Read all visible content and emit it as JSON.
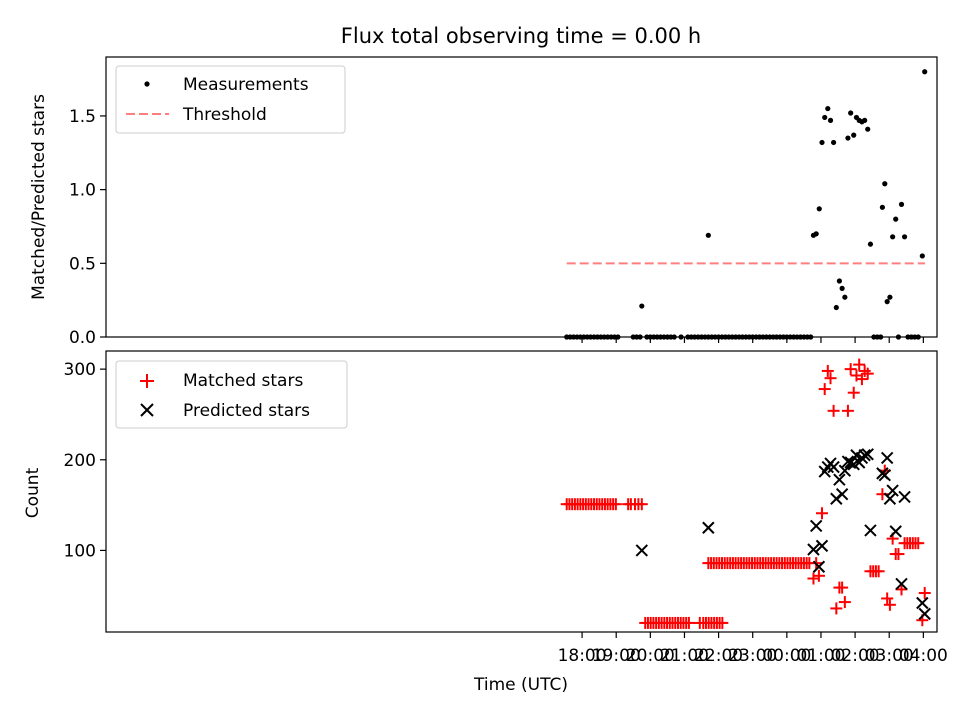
{
  "chart_data": {
    "type": "scatter",
    "title": "Flux total observing time = 0.00 h",
    "xlabel": "Time (UTC)",
    "x_unit": "hours relative to 00:00 UTC",
    "xlim": [
      -19.95,
      4.4
    ],
    "x_ticks": [
      {
        "value": -6,
        "label": "18:00"
      },
      {
        "value": -5,
        "label": "19:00"
      },
      {
        "value": -4,
        "label": "20:00"
      },
      {
        "value": -3,
        "label": "21:00"
      },
      {
        "value": -2,
        "label": "22:00"
      },
      {
        "value": -1,
        "label": "23:00"
      },
      {
        "value": 0,
        "label": "00:00"
      },
      {
        "value": 1,
        "label": "01:00"
      },
      {
        "value": 2,
        "label": "02:00"
      },
      {
        "value": 3,
        "label": "03:00"
      },
      {
        "value": 4,
        "label": "04:00"
      }
    ],
    "top": {
      "ylabel": "Matched/Predicted stars",
      "ylim": [
        0,
        1.9
      ],
      "y_ticks": [
        {
          "value": 0,
          "label": "0.0"
        },
        {
          "value": 0.5,
          "label": "0.5"
        },
        {
          "value": 1.0,
          "label": "1.0"
        },
        {
          "value": 1.5,
          "label": "1.5"
        }
      ],
      "legend": {
        "location": "upper-left",
        "measurements_label": "Measurements",
        "threshold_label": "Threshold"
      },
      "threshold": {
        "name": "Threshold",
        "value": 0.5,
        "x_start": -6.45,
        "x_end": 4.05,
        "color": "#ff7f7f"
      },
      "measurements": {
        "name": "Measurements",
        "color": "#000000",
        "points": [
          [
            -6.45,
            0
          ],
          [
            -6.35,
            0
          ],
          [
            -6.25,
            0
          ],
          [
            -6.15,
            0
          ],
          [
            -6.05,
            0
          ],
          [
            -5.95,
            0
          ],
          [
            -5.85,
            0
          ],
          [
            -5.75,
            0
          ],
          [
            -5.65,
            0
          ],
          [
            -5.55,
            0
          ],
          [
            -5.45,
            0
          ],
          [
            -5.35,
            0
          ],
          [
            -5.25,
            0
          ],
          [
            -5.15,
            0
          ],
          [
            -5.05,
            0
          ],
          [
            -4.95,
            0
          ],
          [
            -4.5,
            0
          ],
          [
            -4.4,
            0
          ],
          [
            -4.3,
            0
          ],
          [
            -4.25,
            0.21
          ],
          [
            -4.1,
            0
          ],
          [
            -4.0,
            0
          ],
          [
            -3.9,
            0
          ],
          [
            -3.8,
            0
          ],
          [
            -3.7,
            0
          ],
          [
            -3.6,
            0
          ],
          [
            -3.5,
            0
          ],
          [
            -3.4,
            0
          ],
          [
            -3.3,
            0
          ],
          [
            -3.1,
            0
          ],
          [
            -2.9,
            0
          ],
          [
            -2.8,
            0
          ],
          [
            -2.7,
            0
          ],
          [
            -2.6,
            0
          ],
          [
            -2.5,
            0
          ],
          [
            -2.4,
            0
          ],
          [
            -2.3,
            0
          ],
          [
            -2.3,
            0.69
          ],
          [
            -2.2,
            0
          ],
          [
            -2.1,
            0
          ],
          [
            -2.0,
            0
          ],
          [
            -1.9,
            0
          ],
          [
            -1.8,
            0
          ],
          [
            -1.7,
            0
          ],
          [
            -1.6,
            0
          ],
          [
            -1.5,
            0
          ],
          [
            -1.4,
            0
          ],
          [
            -1.3,
            0
          ],
          [
            -1.2,
            0
          ],
          [
            -1.1,
            0
          ],
          [
            -1.0,
            0
          ],
          [
            -0.9,
            0
          ],
          [
            -0.8,
            0
          ],
          [
            -0.7,
            0
          ],
          [
            -0.6,
            0
          ],
          [
            -0.5,
            0
          ],
          [
            -0.4,
            0
          ],
          [
            -0.3,
            0
          ],
          [
            -0.2,
            0
          ],
          [
            -0.1,
            0
          ],
          [
            0.0,
            0
          ],
          [
            0.1,
            0
          ],
          [
            0.2,
            0
          ],
          [
            0.3,
            0
          ],
          [
            0.4,
            0
          ],
          [
            0.5,
            0
          ],
          [
            0.6,
            0
          ],
          [
            0.7,
            0
          ],
          [
            0.78,
            0.69
          ],
          [
            0.86,
            0.7
          ],
          [
            0.95,
            0.87
          ],
          [
            1.03,
            1.32
          ],
          [
            1.11,
            1.49
          ],
          [
            1.2,
            1.55
          ],
          [
            1.28,
            1.47
          ],
          [
            1.37,
            1.32
          ],
          [
            1.45,
            0.2
          ],
          [
            1.54,
            0.38
          ],
          [
            1.62,
            0.33
          ],
          [
            1.7,
            0.27
          ],
          [
            1.79,
            1.35
          ],
          [
            1.87,
            1.52
          ],
          [
            1.96,
            1.37
          ],
          [
            2.04,
            1.49
          ],
          [
            2.12,
            1.47
          ],
          [
            2.2,
            1.46
          ],
          [
            2.28,
            1.47
          ],
          [
            2.37,
            1.41
          ],
          [
            2.45,
            0.63
          ],
          [
            2.55,
            0
          ],
          [
            2.65,
            0
          ],
          [
            2.75,
            0
          ],
          [
            2.8,
            0.88
          ],
          [
            2.87,
            1.04
          ],
          [
            2.94,
            0.24
          ],
          [
            3.02,
            0.27
          ],
          [
            3.1,
            0.68
          ],
          [
            3.19,
            0.8
          ],
          [
            3.27,
            0
          ],
          [
            3.36,
            0.9
          ],
          [
            3.45,
            0.68
          ],
          [
            3.55,
            0
          ],
          [
            3.65,
            0
          ],
          [
            3.75,
            0
          ],
          [
            3.85,
            0
          ],
          [
            3.97,
            0.55
          ],
          [
            4.04,
            1.8
          ]
        ]
      }
    },
    "bottom": {
      "ylabel": "Count",
      "ylim": [
        10,
        320
      ],
      "y_ticks": [
        {
          "value": 100,
          "label": "100"
        },
        {
          "value": 200,
          "label": "200"
        },
        {
          "value": 300,
          "label": "300"
        }
      ],
      "legend": {
        "location": "upper-left",
        "matched_label": "Matched stars",
        "predicted_label": "Predicted stars"
      },
      "matched": {
        "name": "Matched stars",
        "color": "#ff0000",
        "marker": "+",
        "points": [
          [
            -6.45,
            151
          ],
          [
            -6.37,
            151
          ],
          [
            -6.29,
            151
          ],
          [
            -6.21,
            151
          ],
          [
            -6.13,
            151
          ],
          [
            -6.05,
            151
          ],
          [
            -5.97,
            151
          ],
          [
            -5.89,
            151
          ],
          [
            -5.81,
            151
          ],
          [
            -5.73,
            151
          ],
          [
            -5.65,
            151
          ],
          [
            -5.57,
            151
          ],
          [
            -5.49,
            151
          ],
          [
            -5.41,
            151
          ],
          [
            -5.33,
            151
          ],
          [
            -5.25,
            151
          ],
          [
            -5.17,
            151
          ],
          [
            -5.09,
            151
          ],
          [
            -5.01,
            151
          ],
          [
            -4.65,
            151
          ],
          [
            -4.57,
            151
          ],
          [
            -4.45,
            151
          ],
          [
            -4.35,
            151
          ],
          [
            -4.25,
            151
          ],
          [
            -4.15,
            20
          ],
          [
            -4.07,
            20
          ],
          [
            -3.99,
            20
          ],
          [
            -3.91,
            20
          ],
          [
            -3.83,
            20
          ],
          [
            -3.75,
            20
          ],
          [
            -3.67,
            20
          ],
          [
            -3.59,
            20
          ],
          [
            -3.51,
            20
          ],
          [
            -3.43,
            20
          ],
          [
            -3.35,
            20
          ],
          [
            -3.27,
            20
          ],
          [
            -3.19,
            20
          ],
          [
            -3.11,
            20
          ],
          [
            -3.03,
            20
          ],
          [
            -2.95,
            20
          ],
          [
            -2.87,
            20
          ],
          [
            -2.55,
            20
          ],
          [
            -2.45,
            20
          ],
          [
            -2.37,
            20
          ],
          [
            -2.29,
            20
          ],
          [
            -2.21,
            20
          ],
          [
            -2.13,
            20
          ],
          [
            -2.05,
            20
          ],
          [
            -1.97,
            20
          ],
          [
            -1.89,
            20
          ],
          [
            -2.3,
            86
          ],
          [
            -2.22,
            86
          ],
          [
            -2.14,
            86
          ],
          [
            -2.06,
            86
          ],
          [
            -1.98,
            86
          ],
          [
            -1.9,
            86
          ],
          [
            -1.82,
            86
          ],
          [
            -1.74,
            86
          ],
          [
            -1.66,
            86
          ],
          [
            -1.58,
            86
          ],
          [
            -1.5,
            86
          ],
          [
            -1.42,
            86
          ],
          [
            -1.34,
            86
          ],
          [
            -1.26,
            86
          ],
          [
            -1.18,
            86
          ],
          [
            -1.1,
            86
          ],
          [
            -1.02,
            86
          ],
          [
            -0.94,
            86
          ],
          [
            -0.86,
            86
          ],
          [
            -0.78,
            86
          ],
          [
            -0.7,
            86
          ],
          [
            -0.62,
            86
          ],
          [
            -0.54,
            86
          ],
          [
            -0.46,
            86
          ],
          [
            -0.38,
            86
          ],
          [
            -0.3,
            86
          ],
          [
            -0.22,
            86
          ],
          [
            -0.14,
            86
          ],
          [
            -0.06,
            86
          ],
          [
            0.02,
            86
          ],
          [
            0.1,
            86
          ],
          [
            0.18,
            86
          ],
          [
            0.26,
            86
          ],
          [
            0.34,
            86
          ],
          [
            0.42,
            86
          ],
          [
            0.5,
            86
          ],
          [
            0.58,
            86
          ],
          [
            0.66,
            86
          ],
          [
            0.78,
            69
          ],
          [
            0.86,
            86
          ],
          [
            0.94,
            72
          ],
          [
            1.03,
            141
          ],
          [
            1.11,
            278
          ],
          [
            1.2,
            298
          ],
          [
            1.28,
            290
          ],
          [
            1.37,
            254
          ],
          [
            1.45,
            36
          ],
          [
            1.54,
            59
          ],
          [
            1.62,
            59
          ],
          [
            1.7,
            43
          ],
          [
            1.79,
            254
          ],
          [
            1.87,
            300
          ],
          [
            1.96,
            274
          ],
          [
            2.04,
            293
          ],
          [
            2.12,
            305
          ],
          [
            2.2,
            289
          ],
          [
            2.28,
            298
          ],
          [
            2.37,
            295
          ],
          [
            2.45,
            77
          ],
          [
            2.53,
            77
          ],
          [
            2.61,
            77
          ],
          [
            2.69,
            77
          ],
          [
            2.8,
            162
          ],
          [
            2.87,
            188
          ],
          [
            2.94,
            47
          ],
          [
            3.02,
            40
          ],
          [
            3.1,
            113
          ],
          [
            3.19,
            96
          ],
          [
            3.27,
            96
          ],
          [
            3.36,
            57
          ],
          [
            3.45,
            108
          ],
          [
            3.53,
            108
          ],
          [
            3.61,
            108
          ],
          [
            3.69,
            108
          ],
          [
            3.77,
            108
          ],
          [
            3.85,
            108
          ],
          [
            3.97,
            23
          ],
          [
            4.04,
            53
          ]
        ]
      },
      "predicted": {
        "name": "Predicted stars",
        "color": "#000000",
        "marker": "x",
        "points": [
          [
            -4.25,
            100
          ],
          [
            -2.3,
            125
          ],
          [
            0.78,
            101
          ],
          [
            0.86,
            127
          ],
          [
            0.94,
            82
          ],
          [
            1.03,
            105
          ],
          [
            1.11,
            187
          ],
          [
            1.2,
            192
          ],
          [
            1.28,
            196
          ],
          [
            1.37,
            192
          ],
          [
            1.45,
            157
          ],
          [
            1.54,
            178
          ],
          [
            1.62,
            162
          ],
          [
            1.7,
            188
          ],
          [
            1.79,
            198
          ],
          [
            1.87,
            197
          ],
          [
            1.96,
            195
          ],
          [
            2.04,
            205
          ],
          [
            2.12,
            197
          ],
          [
            2.2,
            202
          ],
          [
            2.28,
            205
          ],
          [
            2.37,
            206
          ],
          [
            2.45,
            122
          ],
          [
            2.8,
            185
          ],
          [
            2.87,
            183
          ],
          [
            2.94,
            202
          ],
          [
            3.02,
            157
          ],
          [
            3.1,
            166
          ],
          [
            3.19,
            121
          ],
          [
            3.36,
            63
          ],
          [
            3.45,
            159
          ],
          [
            3.97,
            42
          ],
          [
            4.04,
            30
          ]
        ]
      }
    }
  }
}
